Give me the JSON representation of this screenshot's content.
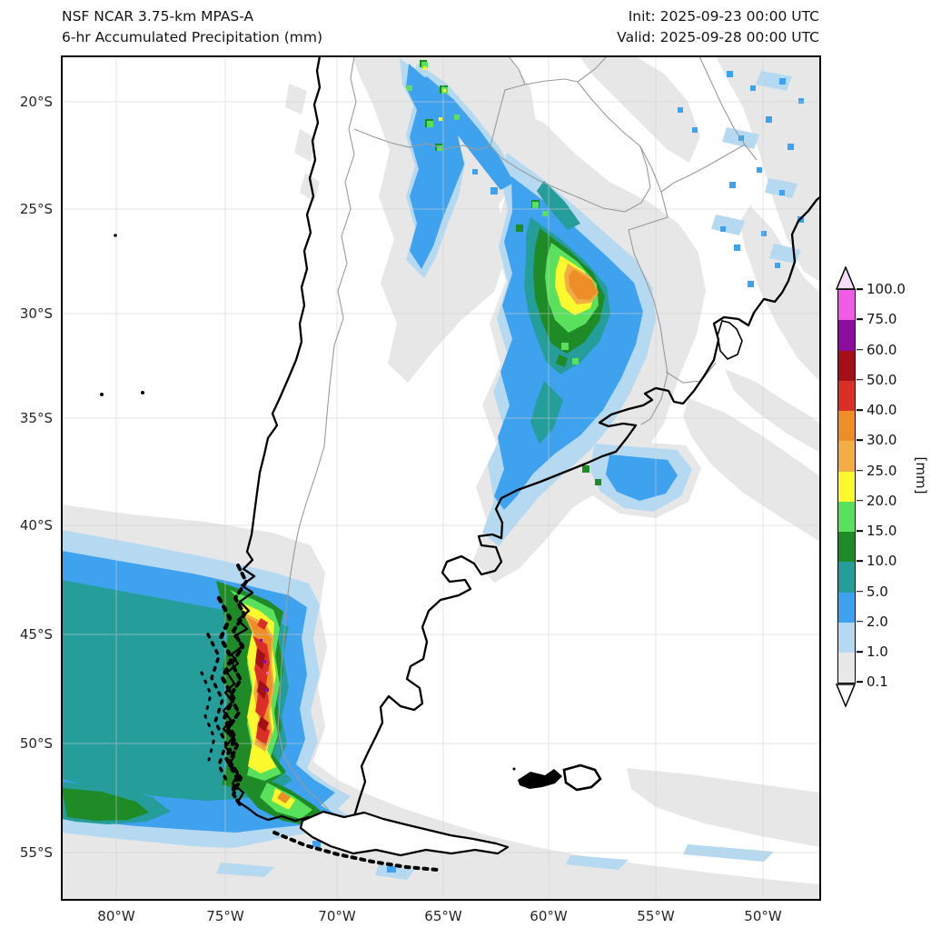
{
  "header": {
    "title_line1": "NSF NCAR 3.75-km MPAS-A",
    "title_line2": "6-hr Accumulated Precipitation (mm)",
    "init_label": "Init: 2025-09-23 00:00 UTC",
    "valid_label": "Valid: 2025-09-28 00:00 UTC"
  },
  "axes": {
    "lat_labels": [
      "20°S",
      "25°S",
      "30°S",
      "35°S",
      "40°S",
      "45°S",
      "50°S",
      "55°S"
    ],
    "lon_labels": [
      "80°W",
      "75°W",
      "70°W",
      "65°W",
      "60°W",
      "55°W",
      "50°W"
    ]
  },
  "colorbar": {
    "unit": "[mm]",
    "tick_labels": [
      "100.0",
      "75.0",
      "60.0",
      "50.0",
      "40.0",
      "30.0",
      "25.0",
      "20.0",
      "15.0",
      "10.0",
      "5.0",
      "2.0",
      "1.0",
      "0.1"
    ],
    "segment_colors_top_to_bottom": [
      "#f05ce8",
      "#8e0d9e",
      "#a31017",
      "#da2f27",
      "#ed8e27",
      "#f2ae45",
      "#fdf92f",
      "#59e05c",
      "#1e8b27",
      "#259d9b",
      "#3fa2ee",
      "#b5d9f0",
      "#e8e8e8"
    ],
    "over_arrow_color": "#fbdcf8",
    "under_arrow_color": "#ffffff"
  }
}
